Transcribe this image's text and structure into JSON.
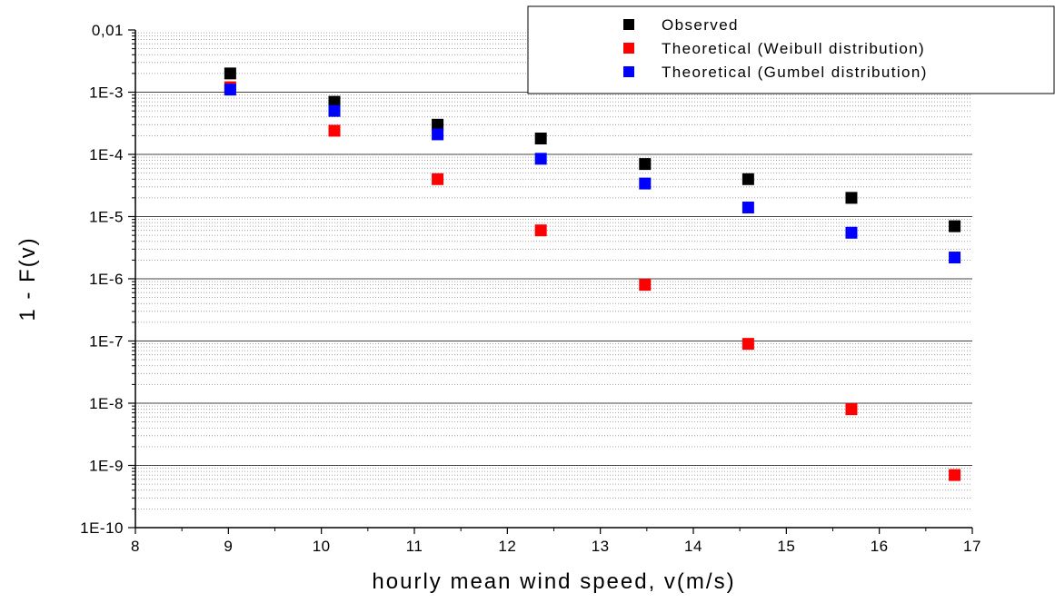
{
  "chart_data": {
    "type": "scatter",
    "title": "",
    "xlabel": "hourly mean wind speed, v(m/s)",
    "ylabel": "1 - F(v)",
    "xlim": [
      8,
      17
    ],
    "ylim": [
      1e-10,
      0.01
    ],
    "yscale": "log",
    "x_ticks": [
      "8",
      "9",
      "10",
      "11",
      "12",
      "13",
      "14",
      "15",
      "16",
      "17"
    ],
    "y_ticks": [
      "0,01",
      "1E-3",
      "1E-4",
      "1E-5",
      "1E-6",
      "1E-7",
      "1E-8",
      "1E-9",
      "1E-10"
    ],
    "grid": true,
    "legend_position": "top-right",
    "series": [
      {
        "name": "Observed",
        "color": "#000000",
        "marker": "square",
        "x": [
          9.02,
          10.14,
          11.25,
          12.36,
          13.48,
          14.59,
          15.7,
          16.81
        ],
        "y": [
          0.002,
          0.0007,
          0.0003,
          0.00018,
          7e-05,
          4e-05,
          2e-05,
          7e-06
        ]
      },
      {
        "name": "Theoretical (Weibull distribution)",
        "color": "#ff0000",
        "marker": "square",
        "x": [
          9.02,
          10.14,
          11.25,
          12.36,
          13.48,
          14.59,
          15.7,
          16.81
        ],
        "y": [
          0.0012,
          0.00024,
          4e-05,
          6e-06,
          8e-07,
          9e-08,
          8e-09,
          7e-10
        ]
      },
      {
        "name": "Theoretical (Gumbel distribution)",
        "color": "#0000ff",
        "marker": "square",
        "x": [
          9.02,
          10.14,
          11.25,
          12.36,
          13.48,
          14.59,
          15.7,
          16.81
        ],
        "y": [
          0.0011,
          0.0005,
          0.00021,
          8.5e-05,
          3.4e-05,
          1.4e-05,
          5.5e-06,
          2.2e-06
        ]
      }
    ]
  }
}
